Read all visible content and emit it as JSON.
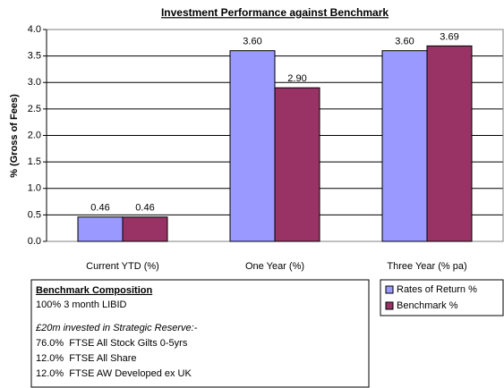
{
  "chart_data": {
    "type": "bar",
    "title": "Investment Performance against Benchmark",
    "y_label": "% (Gross of Fees)",
    "categories": [
      "Current YTD (%)",
      "One Year (%)",
      "Three Year (% pa)"
    ],
    "series": [
      {
        "name": "Rates of Return %",
        "color": "#9999ff",
        "values": [
          0.46,
          3.6,
          3.6
        ],
        "value_labels": [
          "0.46",
          "3.60",
          "3.60"
        ]
      },
      {
        "name": "Benchmark %",
        "color": "#993366",
        "values": [
          0.46,
          2.9,
          3.69
        ],
        "value_labels": [
          "0.46",
          "2.90",
          "3.69"
        ]
      }
    ],
    "ylim": [
      0,
      4
    ],
    "yticks": [
      {
        "value": 0,
        "label": "0.0"
      },
      {
        "value": 0.5,
        "label": "0.5"
      },
      {
        "value": 1,
        "label": "1.0"
      },
      {
        "value": 1.5,
        "label": "1.5"
      },
      {
        "value": 2,
        "label": "2.0"
      },
      {
        "value": 2.5,
        "label": "2.5"
      },
      {
        "value": 3,
        "label": "3.0"
      },
      {
        "value": 3.5,
        "label": "3.5"
      },
      {
        "value": 4,
        "label": "4.0"
      }
    ],
    "grid": true,
    "legend": "bottom-right"
  },
  "benchmark": {
    "title": "Benchmark Composition",
    "lines": [
      "100% 3 month LIBID",
      "£20m invested in Strategic Reserve:-",
      "76.0%  FTSE All Stock Gilts 0-5yrs",
      "12.0%  FTSE All Share",
      "12.0%  FTSE AW Developed ex UK"
    ]
  }
}
